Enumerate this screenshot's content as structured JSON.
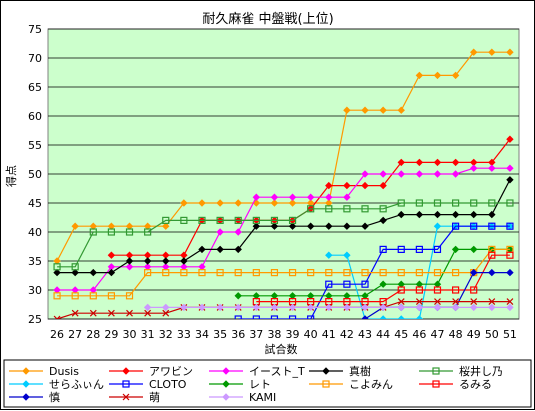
{
  "chart_data": {
    "type": "line",
    "title": "耐久麻雀 中盤戦(上位)",
    "xlabel": "試合数",
    "ylabel": "得点",
    "ylim": [
      25,
      75
    ],
    "yticks": [
      25,
      30,
      35,
      40,
      45,
      50,
      55,
      60,
      65,
      70,
      75
    ],
    "x": [
      "26",
      "27",
      "28",
      "29",
      "30",
      "31",
      "32",
      "33",
      "34",
      "35",
      "36",
      "37",
      "38",
      "39",
      "40",
      "41",
      "42",
      "43",
      "44",
      "45",
      "46",
      "47",
      "48",
      "49",
      "50",
      "51"
    ],
    "plot_background": "#ccffcc",
    "grid": true,
    "legend_position": "bottom",
    "series": [
      {
        "name": "Dusis",
        "color": "#ff9900",
        "marker": "diamond",
        "values": [
          35,
          41,
          41,
          41,
          41,
          41,
          41,
          45,
          45,
          45,
          45,
          45,
          45,
          45,
          45,
          45,
          61,
          61,
          61,
          61,
          67,
          67,
          67,
          71,
          71,
          71
        ]
      },
      {
        "name": "アワビン",
        "color": "#ff0000",
        "marker": "diamond",
        "values": [
          null,
          null,
          null,
          36,
          36,
          36,
          36,
          36,
          42,
          42,
          42,
          42,
          42,
          42,
          44,
          48,
          48,
          48,
          48,
          52,
          52,
          52,
          52,
          52,
          52,
          56
        ]
      },
      {
        "name": "イースト_T",
        "color": "#ff00ff",
        "marker": "diamond",
        "values": [
          30,
          30,
          30,
          34,
          34,
          34,
          34,
          34,
          34,
          40,
          40,
          46,
          46,
          46,
          46,
          46,
          46,
          50,
          50,
          50,
          50,
          50,
          50,
          51,
          51,
          51
        ]
      },
      {
        "name": "真樹",
        "color": "#000000",
        "marker": "diamond",
        "values": [
          33,
          33,
          33,
          33,
          35,
          35,
          35,
          35,
          37,
          37,
          37,
          41,
          41,
          41,
          41,
          41,
          41,
          41,
          42,
          43,
          43,
          43,
          43,
          43,
          43,
          49
        ]
      },
      {
        "name": "桜井し乃",
        "color": "#339933",
        "marker": "square",
        "values": [
          34,
          34,
          40,
          40,
          40,
          40,
          42,
          42,
          42,
          42,
          42,
          42,
          42,
          42,
          44,
          44,
          44,
          44,
          44,
          45,
          45,
          45,
          45,
          45,
          45,
          45
        ]
      },
      {
        "name": "せらふぃん",
        "color": "#00ccff",
        "marker": "diamond",
        "values": [
          null,
          null,
          null,
          null,
          null,
          null,
          null,
          null,
          null,
          null,
          null,
          null,
          null,
          null,
          null,
          36,
          36,
          25,
          25,
          25,
          25,
          41,
          41,
          41,
          41,
          41
        ]
      },
      {
        "name": "CLOTO",
        "color": "#0000ff",
        "marker": "square",
        "values": [
          null,
          null,
          null,
          null,
          null,
          null,
          null,
          null,
          null,
          null,
          25,
          25,
          25,
          25,
          25,
          31,
          31,
          31,
          37,
          37,
          37,
          37,
          41,
          41,
          41,
          41
        ]
      },
      {
        "name": "レト",
        "color": "#009900",
        "marker": "diamond",
        "values": [
          null,
          null,
          null,
          null,
          null,
          null,
          null,
          null,
          null,
          null,
          29,
          29,
          29,
          29,
          29,
          29,
          29,
          29,
          31,
          31,
          31,
          31,
          37,
          37,
          37,
          37
        ]
      },
      {
        "name": "こよみん",
        "color": "#ff9900",
        "marker": "square",
        "values": [
          29,
          29,
          29,
          29,
          29,
          33,
          33,
          33,
          33,
          33,
          33,
          33,
          33,
          33,
          33,
          33,
          33,
          33,
          33,
          33,
          33,
          33,
          33,
          33,
          37,
          37
        ]
      },
      {
        "name": "るみる",
        "color": "#ff0000",
        "marker": "square",
        "values": [
          null,
          null,
          null,
          null,
          null,
          null,
          null,
          null,
          null,
          null,
          null,
          28,
          28,
          28,
          28,
          28,
          28,
          28,
          28,
          30,
          30,
          30,
          30,
          30,
          36,
          36
        ]
      },
      {
        "name": "慎",
        "color": "#0000cc",
        "marker": "diamond",
        "values": [
          null,
          null,
          null,
          null,
          null,
          null,
          null,
          null,
          null,
          null,
          null,
          null,
          null,
          null,
          null,
          null,
          null,
          25,
          27,
          27,
          27,
          27,
          27,
          33,
          33,
          33
        ]
      },
      {
        "name": "萌",
        "color": "#cc0000",
        "marker": "x",
        "values": [
          25,
          26,
          26,
          26,
          26,
          26,
          26,
          27,
          27,
          27,
          27,
          27,
          27,
          27,
          27,
          27,
          27,
          27,
          27,
          28,
          28,
          28,
          28,
          28,
          28,
          28
        ]
      },
      {
        "name": "KAMI",
        "color": "#cc99ff",
        "marker": "diamond",
        "values": [
          null,
          null,
          null,
          null,
          null,
          27,
          27,
          27,
          27,
          27,
          27,
          27,
          27,
          27,
          27,
          27,
          27,
          27,
          27,
          27,
          27,
          27,
          27,
          27,
          27,
          27
        ]
      }
    ]
  }
}
